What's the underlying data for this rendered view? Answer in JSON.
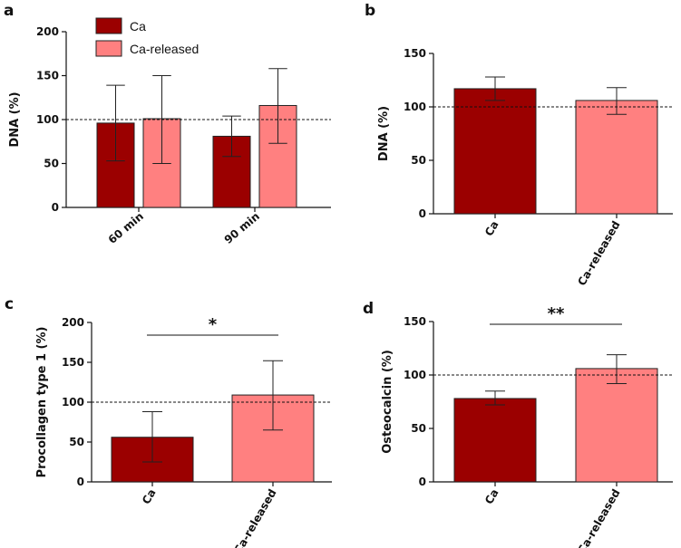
{
  "colors": {
    "ca": "#9b0000",
    "ca_released": "#ff8080",
    "axis": "#111111"
  },
  "chart_data": [
    {
      "panel": "a",
      "type": "bar",
      "ylabel": "DNA (%)",
      "ylim": [
        0,
        200
      ],
      "yticks": [
        "0",
        "50",
        "100",
        "150",
        "200"
      ],
      "categories": [
        "60 min",
        "90 min"
      ],
      "reference_line": 100,
      "legend": {
        "placement": "top-left",
        "entries": [
          "Ca",
          "Ca-released"
        ]
      },
      "series": [
        {
          "name": "Ca",
          "values": [
            96,
            81
          ],
          "err_low": [
            53,
            58
          ],
          "err_high": [
            139,
            104
          ]
        },
        {
          "name": "Ca-released",
          "values": [
            101,
            116
          ],
          "err_low": [
            50,
            73
          ],
          "err_high": [
            150,
            158
          ]
        }
      ]
    },
    {
      "panel": "b",
      "type": "bar",
      "ylabel": "DNA (%)",
      "ylim": [
        0,
        150
      ],
      "yticks": [
        "0",
        "50",
        "100",
        "150"
      ],
      "categories": [
        "Ca",
        "Ca-released"
      ],
      "reference_line": 100,
      "values": [
        117,
        106
      ],
      "err_low": [
        106,
        93
      ],
      "err_high": [
        128,
        118
      ]
    },
    {
      "panel": "c",
      "type": "bar",
      "ylabel": "Procollagen type 1 (%)",
      "ylim": [
        0,
        200
      ],
      "yticks": [
        "0",
        "50",
        "100",
        "150",
        "200"
      ],
      "categories": [
        "Ca",
        "Ca-released"
      ],
      "reference_line": 100,
      "values": [
        56,
        109
      ],
      "err_low": [
        25,
        65
      ],
      "err_high": [
        88,
        152
      ],
      "significance": "*"
    },
    {
      "panel": "d",
      "type": "bar",
      "ylabel": "Osteocalcin (%)",
      "ylim": [
        0,
        150
      ],
      "yticks": [
        "0",
        "50",
        "100",
        "150"
      ],
      "categories": [
        "Ca",
        "Ca-released"
      ],
      "reference_line": 100,
      "values": [
        78,
        106
      ],
      "err_low": [
        72,
        92
      ],
      "err_high": [
        85,
        119
      ],
      "significance": "**"
    }
  ]
}
